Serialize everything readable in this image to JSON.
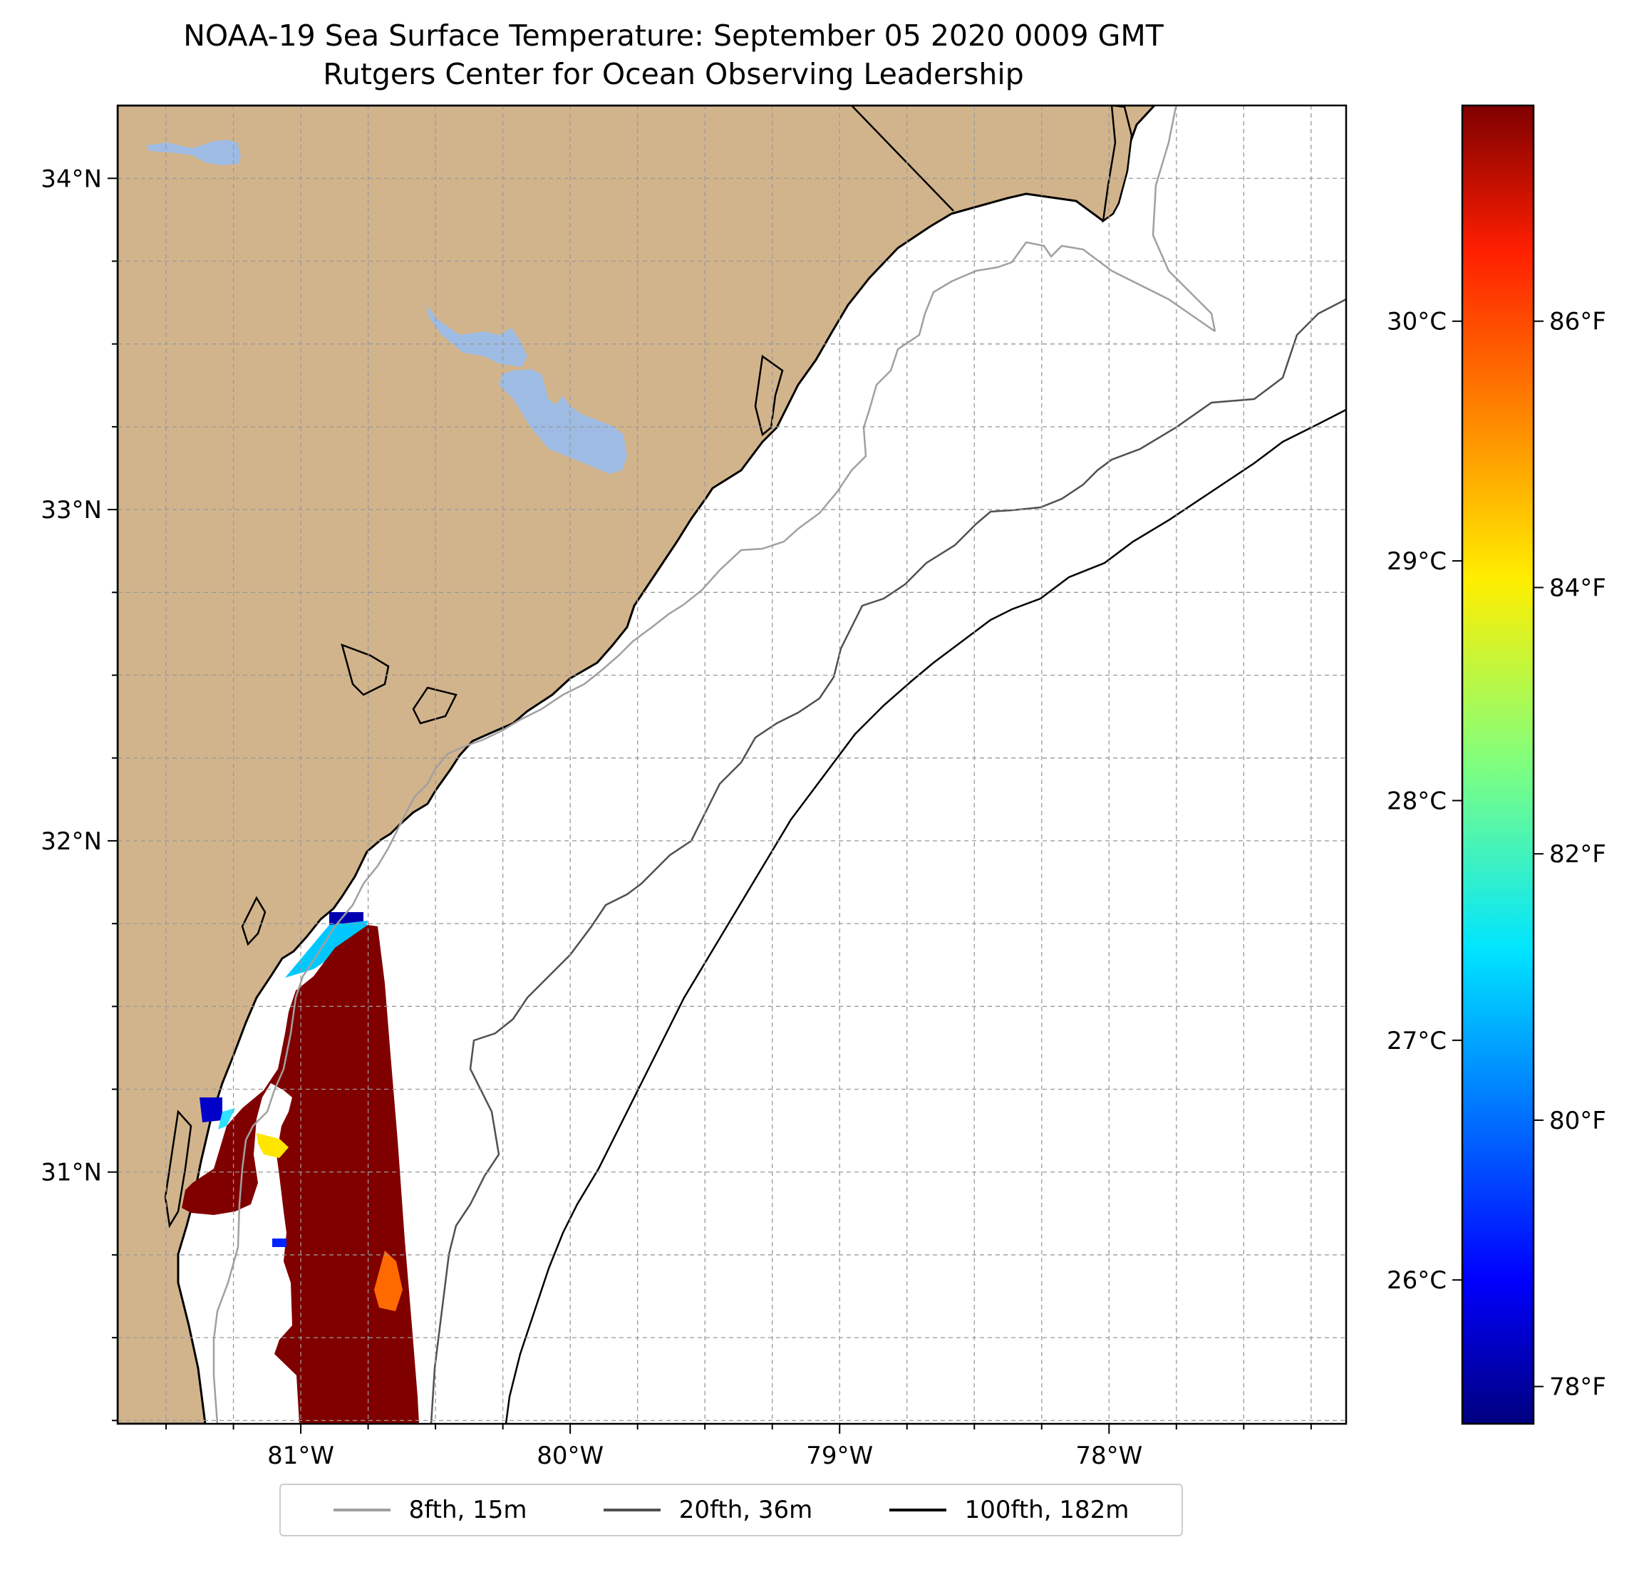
{
  "title": {
    "line1": "NOAA-19 Sea Surface Temperature: September 05 2020 0009 GMT",
    "line2": "Rutgers Center for Ocean Observing Leadership"
  },
  "map": {
    "lon_range": [
      -81.68,
      -77.12
    ],
    "lat_range": [
      30.24,
      34.22
    ],
    "lat_ticks": [
      {
        "value": 34,
        "label": "34°N"
      },
      {
        "value": 33,
        "label": "33°N"
      },
      {
        "value": 32,
        "label": "32°N"
      },
      {
        "value": 31,
        "label": "31°N"
      }
    ],
    "lon_ticks": [
      {
        "value": -81,
        "label": "81°W"
      },
      {
        "value": -80,
        "label": "80°W"
      },
      {
        "value": -79,
        "label": "79°W"
      },
      {
        "value": -78,
        "label": "78°W"
      }
    ],
    "gridlines": true,
    "colors": {
      "land": "#d2b48c",
      "water": "#ffffff",
      "lakes": "#9dbbe3"
    }
  },
  "colorbar": {
    "colormap": "jet",
    "range_c": [
      25.4,
      30.9
    ],
    "celsius_ticks": [
      {
        "value": 30,
        "label": "30°C"
      },
      {
        "value": 29,
        "label": "29°C"
      },
      {
        "value": 28,
        "label": "28°C"
      },
      {
        "value": 27,
        "label": "27°C"
      },
      {
        "value": 26,
        "label": "26°C"
      }
    ],
    "fahrenheit_ticks": [
      {
        "value": 86,
        "label": "86°F"
      },
      {
        "value": 84,
        "label": "84°F"
      },
      {
        "value": 82,
        "label": "82°F"
      },
      {
        "value": 80,
        "label": "80°F"
      },
      {
        "value": 78,
        "label": "78°F"
      }
    ]
  },
  "legend": {
    "placement": "bottom-center",
    "entries": [
      {
        "label": "8fth, 15m",
        "color": "#a0a0a0"
      },
      {
        "label": "20fth, 36m",
        "color": "#505050"
      },
      {
        "label": "100fth, 182m",
        "color": "#000000"
      }
    ]
  }
}
